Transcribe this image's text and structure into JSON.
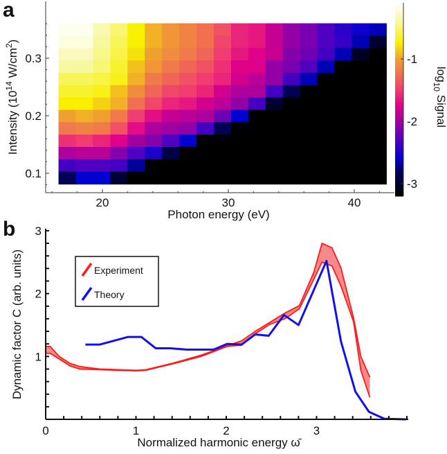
{
  "panels": {
    "a": "a",
    "b": "b"
  },
  "chart_data": [
    {
      "type": "heatmap",
      "panel": "a",
      "xlabel": "Photon energy (eV)",
      "ylabel_parts": {
        "pre": "Intensity (10",
        "sup1": "14",
        "mid": " W/cm",
        "sup2": "2",
        "post": ")"
      },
      "colorbar_label": {
        "pre": "log",
        "sub": "10",
        "post": " Signal"
      },
      "x_ticks": [
        20,
        30,
        40
      ],
      "y_ticks": [
        0.1,
        0.2,
        0.3
      ],
      "colorbar_ticks": [
        -1,
        -2,
        -3
      ],
      "xlim": [
        15.5,
        43.2
      ],
      "ylim": [
        0.075,
        0.4
      ],
      "colorbar_range": [
        -3.2,
        -0.1
      ],
      "x_centers": [
        17.2,
        18.57,
        19.94,
        21.31,
        22.68,
        24.05,
        25.42,
        26.79,
        28.16,
        29.53,
        30.9,
        32.27,
        33.64,
        35.01,
        36.38,
        37.75,
        39.12,
        40.49,
        41.86
      ],
      "y_centers": [
        0.35,
        0.3285,
        0.307,
        0.2855,
        0.264,
        0.2425,
        0.221,
        0.1995,
        0.178,
        0.1565,
        0.135,
        0.1135,
        0.092
      ],
      "values": [
        [
          -0.15,
          -0.15,
          -0.35,
          -0.5,
          -0.75,
          -0.95,
          -1.05,
          -1.15,
          -1.25,
          -1.4,
          -1.6,
          -1.65,
          -1.85,
          -2.05,
          -2.15,
          -2.3,
          -2.45,
          -2.55,
          -2.65
        ],
        [
          -0.2,
          -0.2,
          -0.4,
          -0.55,
          -0.75,
          -0.95,
          -1.05,
          -1.15,
          -1.25,
          -1.45,
          -1.6,
          -1.65,
          -1.85,
          -2.05,
          -2.15,
          -2.3,
          -2.4,
          -2.65,
          -3.0
        ],
        [
          -0.3,
          -0.3,
          -0.45,
          -0.6,
          -0.8,
          -1.0,
          -1.1,
          -1.2,
          -1.3,
          -1.5,
          -1.65,
          -1.75,
          -1.85,
          -2.1,
          -2.2,
          -2.35,
          -2.65,
          -3.05,
          -3.2
        ],
        [
          -0.4,
          -0.4,
          -0.5,
          -0.65,
          -0.9,
          -1.05,
          -1.2,
          -1.3,
          -1.4,
          -1.55,
          -1.75,
          -1.75,
          -2.05,
          -2.15,
          -2.3,
          -2.65,
          -3.2,
          -3.2,
          -3.2
        ],
        [
          -0.55,
          -0.55,
          -0.6,
          -0.7,
          -0.95,
          -1.2,
          -1.3,
          -1.4,
          -1.5,
          -1.6,
          -1.8,
          -1.9,
          -2.05,
          -2.35,
          -2.65,
          -3.2,
          -3.2,
          -3.2,
          -3.2
        ],
        [
          -0.65,
          -0.65,
          -0.7,
          -0.9,
          -1.1,
          -1.3,
          -1.45,
          -1.5,
          -1.6,
          -1.8,
          -1.95,
          -1.95,
          -2.35,
          -2.85,
          -3.2,
          -3.2,
          -3.2,
          -3.2,
          -3.2
        ],
        [
          -0.75,
          -0.75,
          -0.85,
          -0.95,
          -1.25,
          -1.45,
          -1.6,
          -1.65,
          -1.8,
          -1.9,
          -2.05,
          -2.35,
          -3.0,
          -3.2,
          -3.2,
          -3.2,
          -3.2,
          -3.2,
          -3.2
        ],
        [
          -1.0,
          -0.95,
          -1.0,
          -1.2,
          -1.5,
          -1.7,
          -1.85,
          -1.9,
          -1.95,
          -2.2,
          -2.6,
          -3.2,
          -3.2,
          -3.2,
          -3.2,
          -3.2,
          -3.2,
          -3.2,
          -3.2
        ],
        [
          -1.2,
          -1.15,
          -1.2,
          -1.4,
          -1.7,
          -1.95,
          -2.0,
          -2.05,
          -2.35,
          -2.85,
          -3.2,
          -3.2,
          -3.2,
          -3.2,
          -3.2,
          -3.2,
          -3.2,
          -3.2,
          -3.2
        ],
        [
          -1.55,
          -1.5,
          -1.6,
          -1.75,
          -2.0,
          -2.1,
          -2.3,
          -2.6,
          -3.2,
          -3.2,
          -3.2,
          -3.2,
          -3.2,
          -3.2,
          -3.2,
          -3.2,
          -3.2,
          -3.2,
          -3.2
        ],
        [
          -1.95,
          -1.9,
          -1.9,
          -2.1,
          -2.3,
          -2.5,
          -2.9,
          -3.2,
          -3.2,
          -3.2,
          -3.2,
          -3.2,
          -3.2,
          -3.2,
          -3.2,
          -3.2,
          -3.2,
          -3.2,
          -3.2
        ],
        [
          -2.35,
          -2.3,
          -2.3,
          -2.35,
          -2.7,
          -3.2,
          -3.2,
          -3.2,
          -3.2,
          -3.2,
          -3.2,
          -3.2,
          -3.2,
          -3.2,
          -3.2,
          -3.2,
          -3.2,
          -3.2,
          -3.2
        ],
        [
          -2.85,
          -2.6,
          -2.6,
          -3.0,
          -3.2,
          -3.2,
          -3.2,
          -3.2,
          -3.2,
          -3.2,
          -3.2,
          -3.2,
          -3.2,
          -3.2,
          -3.2,
          -3.2,
          -3.2,
          -3.2,
          -3.2
        ]
      ],
      "colormap_stops": [
        [
          -3.2,
          "#000000"
        ],
        [
          -2.8,
          "#000060"
        ],
        [
          -2.6,
          "#0000d0"
        ],
        [
          -2.3,
          "#5000c0"
        ],
        [
          -2.0,
          "#a000a0"
        ],
        [
          -1.75,
          "#e0008a"
        ],
        [
          -1.5,
          "#f03c70"
        ],
        [
          -1.25,
          "#f07050"
        ],
        [
          -1.0,
          "#f0a030"
        ],
        [
          -0.75,
          "#f8f000"
        ],
        [
          -0.4,
          "#f8f8a0"
        ],
        [
          -0.1,
          "#ffffff"
        ]
      ]
    },
    {
      "type": "line",
      "panel": "b",
      "xlabel": "Normalized harmonic energy ω̄",
      "ylabel": "Dynamic factor C (arb. units)",
      "xlim": [
        0,
        4.0
      ],
      "ylim": [
        0,
        3
      ],
      "x_ticks": [
        0,
        1,
        2,
        3
      ],
      "y_ticks": [
        1,
        2,
        3
      ],
      "legend_position": "top-left",
      "series": [
        {
          "name": "Experiment",
          "color": "#ff1a1a",
          "fill": "#f58a8a",
          "style": "band",
          "x": [
            0,
            0.05,
            0.15,
            0.27,
            0.38,
            0.6,
            1.0,
            1.11,
            1.4,
            1.72,
            2.01,
            2.17,
            2.32,
            2.48,
            2.65,
            2.81,
            2.97,
            3.06,
            3.17,
            3.27,
            3.41,
            3.49,
            3.59
          ],
          "upper": [
            1.16,
            1.16,
            1.0,
            0.89,
            0.84,
            0.8,
            0.78,
            0.79,
            0.89,
            1.02,
            1.17,
            1.25,
            1.4,
            1.54,
            1.69,
            1.81,
            2.34,
            2.8,
            2.73,
            2.41,
            1.61,
            1.0,
            0.67
          ],
          "lower": [
            1.05,
            1.05,
            0.96,
            0.85,
            0.8,
            0.79,
            0.77,
            0.78,
            0.88,
            1.0,
            1.16,
            1.18,
            1.36,
            1.51,
            1.6,
            1.76,
            2.23,
            2.5,
            2.44,
            2.12,
            1.55,
            0.78,
            0.35
          ]
        },
        {
          "name": "Theory",
          "color": "#1010ee",
          "style": "line",
          "x": [
            0.44,
            0.6,
            0.91,
            1.06,
            1.22,
            1.38,
            1.56,
            1.86,
            2.01,
            2.17,
            2.32,
            2.47,
            2.64,
            2.8,
            3.11,
            3.27,
            3.43,
            3.58,
            3.75,
            3.99
          ],
          "y": [
            1.19,
            1.19,
            1.31,
            1.31,
            1.13,
            1.13,
            1.11,
            1.11,
            1.2,
            1.19,
            1.35,
            1.33,
            1.66,
            1.5,
            2.52,
            1.24,
            0.44,
            0.12,
            0.01,
            0.0
          ]
        }
      ]
    }
  ]
}
